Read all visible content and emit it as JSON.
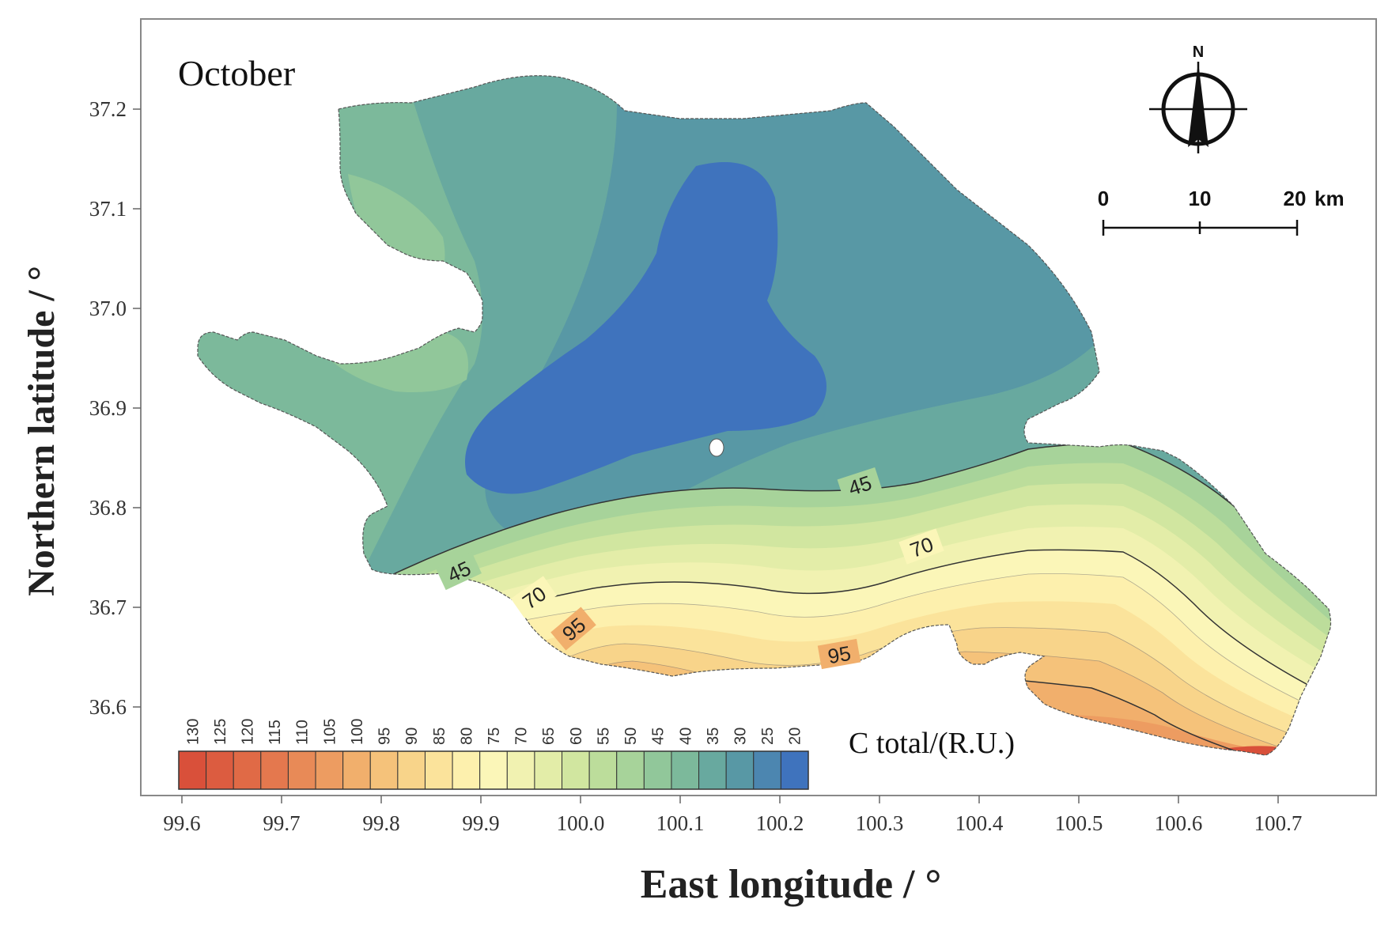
{
  "title": "October",
  "axes": {
    "xlabel": "East longitude / °",
    "ylabel": "Northern latitude / °",
    "x_ticks": [
      "99.6",
      "99.7",
      "99.8",
      "99.9",
      "100.0",
      "100.1",
      "100.2",
      "100.3",
      "100.4",
      "100.5",
      "100.6",
      "100.7"
    ],
    "y_ticks": [
      "37.2",
      "37.1",
      "37.0",
      "36.9",
      "36.8",
      "36.7",
      "36.6"
    ]
  },
  "compass": {
    "north_label": "N"
  },
  "scale_bar": {
    "labels": [
      "0",
      "10",
      "20"
    ],
    "unit": "km"
  },
  "legend": {
    "title": "C total/(R.U.)",
    "values": [
      "130",
      "125",
      "120",
      "115",
      "110",
      "105",
      "100",
      "95",
      "90",
      "85",
      "80",
      "75",
      "70",
      "65",
      "60",
      "55",
      "50",
      "45",
      "40",
      "35",
      "30",
      "25",
      "20"
    ],
    "colors": [
      "#d9503a",
      "#dc5c40",
      "#e06a46",
      "#e4784e",
      "#e88a57",
      "#ed9c61",
      "#f1af6c",
      "#f5c27a",
      "#f8d48a",
      "#fbe39b",
      "#fdf0ad",
      "#fbf6b8",
      "#f1f2b1",
      "#e3eda8",
      "#d1e6a0",
      "#bcdd9b",
      "#a7d39a",
      "#91c79a",
      "#7cb99b",
      "#68a99f",
      "#5898a5",
      "#4c86b0",
      "#3f73bd"
    ]
  },
  "contour_labels": [
    "45",
    "45",
    "70",
    "70",
    "95",
    "95"
  ],
  "chart_data": {
    "type": "heatmap",
    "title": "October",
    "xlabel": "East longitude / °",
    "ylabel": "Northern latitude / °",
    "xlim": [
      99.58,
      100.78
    ],
    "ylim": [
      36.51,
      37.29
    ],
    "colorbar": {
      "label": "C total/(R.U.)",
      "min": 20,
      "max": 130,
      "step": 5
    },
    "labeled_contours": [
      45,
      70,
      95
    ],
    "description_values": {
      "north_core": 20,
      "south_max": 130
    }
  }
}
